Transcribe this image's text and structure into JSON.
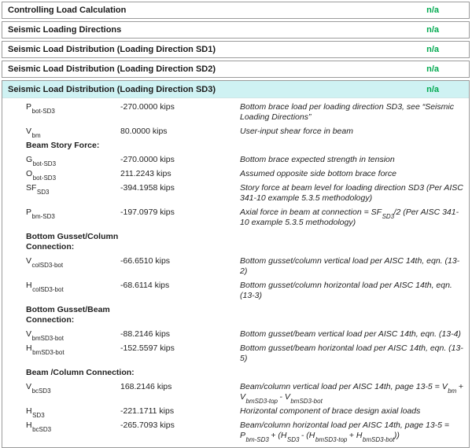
{
  "colors": {
    "highlight": "#cff2f3",
    "status_green": "#00a94f",
    "border": "#9b9b9b",
    "text": "#1f1f1f"
  },
  "sections": [
    {
      "label": "Controlling Load Calculation",
      "status": "n/a",
      "expanded": false
    },
    {
      "label": "Seismic Loading Directions",
      "status": "n/a",
      "expanded": false
    },
    {
      "label": "Seismic Load Distribution (Loading Direction SD1)",
      "status": "n/a",
      "expanded": false
    },
    {
      "label": "Seismic Load Distribution (Loading Direction SD2)",
      "status": "n/a",
      "expanded": false
    },
    {
      "label": "Seismic Load Distribution (Loading Direction SD3)",
      "status": "n/a",
      "expanded": true
    }
  ],
  "detail_rows": [
    {
      "type": "data",
      "base": "P",
      "sub": "bot-SD3",
      "value": "-270.0000 kips",
      "desc": [
        {
          "t": "Bottom brace load per loading direction SD3, see “Seismic Loading Directions”"
        }
      ]
    },
    {
      "type": "data",
      "base": "V",
      "sub": "bm",
      "value": "80.0000 kips",
      "desc": [
        {
          "t": "User-input shear force in beam"
        }
      ]
    },
    {
      "type": "subheading",
      "label": "Beam Story Force:"
    },
    {
      "type": "data",
      "base": "G",
      "sub": "bot-SD3",
      "value": "-270.0000 kips",
      "desc": [
        {
          "t": "Bottom brace expected strength in tension"
        }
      ]
    },
    {
      "type": "data",
      "base": "O",
      "sub": "bot-SD3",
      "value": "211.2243 kips",
      "desc": [
        {
          "t": "Assumed opposite side bottom brace force"
        }
      ]
    },
    {
      "type": "data",
      "base": "SF",
      "sub": "SD3",
      "value": "-394.1958 kips",
      "desc": [
        {
          "t": "Story force at beam level for loading direction SD3 (Per AISC 341-10 example 5.3.5 methodology)"
        }
      ]
    },
    {
      "type": "data",
      "base": "P",
      "sub": "bm-SD3",
      "value": "-197.0979 kips",
      "desc": [
        {
          "t": "Axial force in beam at connection = SF"
        },
        {
          "t": "SD3",
          "sub": true
        },
        {
          "t": "/2 (Per AISC 341-10 example 5.3.5 methodology)"
        }
      ]
    },
    {
      "type": "subheading",
      "label": "Bottom Gusset/Column Connection:"
    },
    {
      "type": "data",
      "base": "V",
      "sub": "colSD3-bot",
      "value": "-66.6510 kips",
      "desc": [
        {
          "t": "Bottom gusset/column vertical load per AISC 14th, eqn. (13-2)"
        }
      ]
    },
    {
      "type": "data",
      "base": "H",
      "sub": "colSD3-bot",
      "value": "-68.6114 kips",
      "desc": [
        {
          "t": "Bottom gusset/column horizontal load per AISC 14th, eqn. (13-3)"
        }
      ]
    },
    {
      "type": "subheading",
      "label": "Bottom Gusset/Beam Connection:"
    },
    {
      "type": "data",
      "base": "V",
      "sub": "bmSD3-bot",
      "value": "-88.2146 kips",
      "desc": [
        {
          "t": "Bottom gusset/beam vertical load per AISC 14th, eqn. (13-4)"
        }
      ]
    },
    {
      "type": "data",
      "base": "H",
      "sub": "bmSD3-bot",
      "value": "-152.5597 kips",
      "desc": [
        {
          "t": "Bottom gusset/beam horizontal load per AISC 14th, eqn. (13-5)"
        }
      ]
    },
    {
      "type": "subheading",
      "label": "Beam /Column Connection:"
    },
    {
      "type": "data",
      "base": "V",
      "sub": "bcSD3",
      "value": "168.2146 kips",
      "desc": [
        {
          "t": "Beam/column vertical load per AISC 14th, page 13-5 = V"
        },
        {
          "t": "bm",
          "sub": true
        },
        {
          "t": " + V"
        },
        {
          "t": "bmSD3-top",
          "sub": true
        },
        {
          "t": " - V"
        },
        {
          "t": "bmSD3-bot",
          "sub": true
        }
      ]
    },
    {
      "type": "data",
      "base": "H",
      "sub": "SD3",
      "value": "-221.1711 kips",
      "desc": [
        {
          "t": "Horizontal component of brace design axial loads"
        }
      ]
    },
    {
      "type": "data",
      "base": "H",
      "sub": "bcSD3",
      "value": "-265.7093 kips",
      "desc": [
        {
          "t": "Beam/column horizontal load per AISC 14th, page 13-5 = P"
        },
        {
          "t": "bm-SD3",
          "sub": true
        },
        {
          "t": " + (H"
        },
        {
          "t": "SD3",
          "sub": true
        },
        {
          "t": " - (H"
        },
        {
          "t": "bmSD3-top",
          "sub": true
        },
        {
          "t": " + H"
        },
        {
          "t": "bmSD3-bot",
          "sub": true
        },
        {
          "t": "))"
        }
      ]
    }
  ]
}
